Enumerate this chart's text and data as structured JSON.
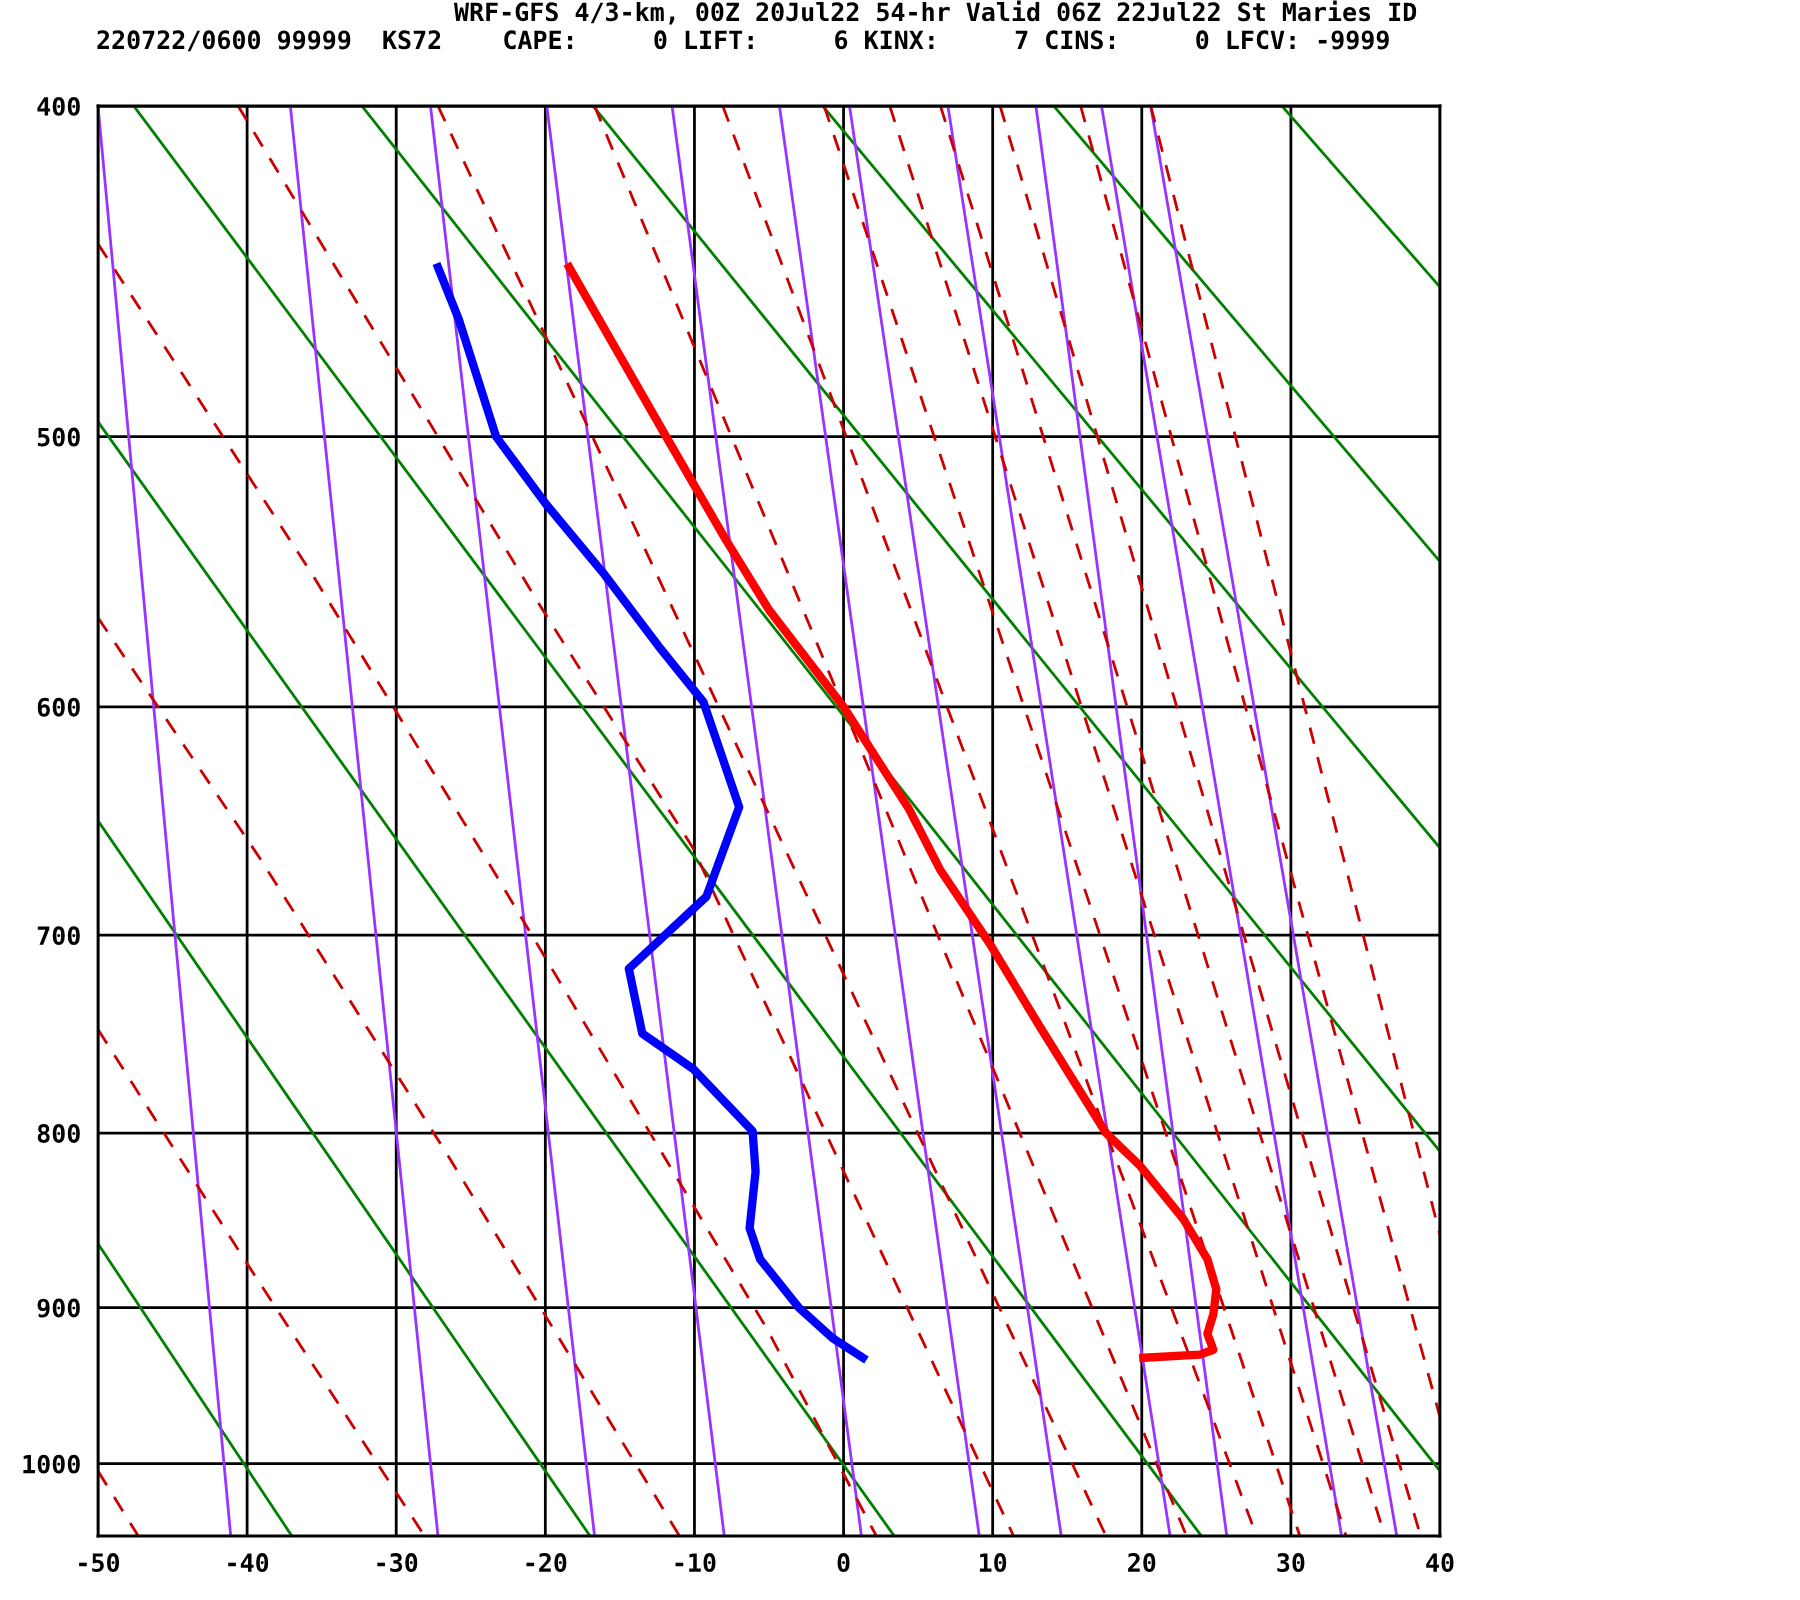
{
  "chart_data": {
    "type": "line",
    "title": "WRF-GFS 4/3-km, 00Z 20Jul22 54-hr Valid 06Z 22Jul22 St Maries ID",
    "subtitle": "220722/0600 99999  KS72    CAPE:     0 LIFT:     6 KINX:     7 CINS:     0 LFCV: -9999",
    "xlim": [
      -50,
      40
    ],
    "xticks": [
      -50,
      -40,
      -30,
      -20,
      -10,
      0,
      10,
      20,
      30,
      40
    ],
    "ylim": [
      1050,
      400
    ],
    "yticks": [
      400,
      500,
      600,
      700,
      800,
      900,
      1000
    ],
    "grid": true,
    "log": "y",
    "series": [
      {
        "type": "line",
        "color": "#008000",
        "line_style": "solid",
        "x": [
          -50,
          -37.0
        ],
        "values": [
          862,
          1050
        ]
      },
      {
        "type": "line",
        "color": "#008000",
        "line_style": "solid",
        "x": [
          -50,
          -17.0
        ],
        "values": [
          648,
          1050
        ]
      },
      {
        "type": "line",
        "color": "#008000",
        "line_style": "solid",
        "x": [
          -50,
          3.4
        ],
        "values": [
          495,
          1050
        ]
      },
      {
        "type": "line",
        "color": "#008000",
        "line_style": "solid",
        "x": [
          -47.6,
          24.0
        ],
        "values": [
          400,
          1050
        ]
      },
      {
        "type": "line",
        "color": "#008000",
        "line_style": "solid",
        "x": [
          -32.3,
          40
        ],
        "values": [
          400,
          1005
        ]
      },
      {
        "type": "line",
        "color": "#008000",
        "line_style": "solid",
        "x": [
          -16.8,
          40
        ],
        "values": [
          400,
          810
        ]
      },
      {
        "type": "line",
        "color": "#008000",
        "line_style": "solid",
        "x": [
          -1.4,
          40
        ],
        "values": [
          400,
          660
        ]
      },
      {
        "type": "line",
        "color": "#008000",
        "line_style": "solid",
        "x": [
          14.1,
          40
        ],
        "values": [
          400,
          544
        ]
      },
      {
        "type": "line",
        "color": "#008000",
        "line_style": "solid",
        "x": [
          29.4,
          40
        ],
        "values": [
          400,
          452
        ]
      },
      {
        "type": "line",
        "color": "#9933ff",
        "line_style": "solid",
        "x": [
          -50,
          -41.1
        ],
        "values": [
          400,
          1050
        ]
      },
      {
        "type": "line",
        "color": "#9933ff",
        "line_style": "solid",
        "x": [
          -37.1,
          -27.2
        ],
        "values": [
          400,
          1050
        ]
      },
      {
        "type": "line",
        "color": "#9933ff",
        "line_style": "solid",
        "x": [
          -27.7,
          -16.7
        ],
        "values": [
          400,
          1050
        ]
      },
      {
        "type": "line",
        "color": "#9933ff",
        "line_style": "solid",
        "x": [
          -19.9,
          -8.0
        ],
        "values": [
          400,
          1050
        ]
      },
      {
        "type": "line",
        "color": "#9933ff",
        "line_style": "solid",
        "x": [
          -11.5,
          1.2
        ],
        "values": [
          400,
          1050
        ]
      },
      {
        "type": "line",
        "color": "#9933ff",
        "line_style": "solid",
        "x": [
          -4.3,
          9.1
        ],
        "values": [
          400,
          1050
        ]
      },
      {
        "type": "line",
        "color": "#9933ff",
        "line_style": "solid",
        "x": [
          0.4,
          14.6
        ],
        "values": [
          400,
          1050
        ]
      },
      {
        "type": "line",
        "color": "#9933ff",
        "line_style": "solid",
        "x": [
          7.0,
          21.9
        ],
        "values": [
          400,
          1050
        ]
      },
      {
        "type": "line",
        "color": "#9933ff",
        "line_style": "solid",
        "x": [
          12.9,
          25.7
        ],
        "values": [
          400,
          1050
        ]
      },
      {
        "type": "line",
        "color": "#9933ff",
        "line_style": "solid",
        "x": [
          17.3,
          33.4
        ],
        "values": [
          400,
          1050
        ]
      },
      {
        "type": "line",
        "color": "#9933ff",
        "line_style": "solid",
        "x": [
          20.6,
          37.1
        ],
        "values": [
          400,
          1050
        ]
      },
      {
        "type": "line",
        "color": "#cc0000",
        "line_style": "dashed",
        "x": [
          -50,
          -47.3
        ],
        "values": [
          1005,
          1050
        ]
      },
      {
        "type": "line",
        "color": "#cc0000",
        "line_style": "dashed",
        "x": [
          -50,
          -40.2,
          -28.1
        ],
        "values": [
          746,
          871,
          1050
        ]
      },
      {
        "type": "line",
        "color": "#cc0000",
        "line_style": "dashed",
        "x": [
          -50,
          -39.2,
          -26.7,
          -11.0
        ],
        "values": [
          565,
          664,
          810,
          1050
        ]
      },
      {
        "type": "line",
        "color": "#cc0000",
        "line_style": "dashed",
        "x": [
          -50,
          -35.6,
          -23.5,
          -5.2,
          2.2
        ],
        "values": [
          439,
          549,
          670,
          912,
          1050
        ]
      },
      {
        "type": "line",
        "color": "#cc0000",
        "line_style": "dashed",
        "x": [
          -40.6,
          -20.4,
          -10.1,
          11.4
        ],
        "values": [
          400,
          560,
          660,
          1050
        ]
      },
      {
        "type": "line",
        "color": "#cc0000",
        "line_style": "dashed",
        "x": [
          -27.2,
          17.6
        ],
        "values": [
          400,
          1050
        ]
      },
      {
        "type": "line",
        "color": "#cc0000",
        "line_style": "dashed",
        "x": [
          -16.7,
          23.0
        ],
        "values": [
          400,
          1050
        ]
      },
      {
        "type": "line",
        "color": "#cc0000",
        "line_style": "dashed",
        "x": [
          -8.1,
          27.7
        ],
        "values": [
          400,
          1050
        ]
      },
      {
        "type": "line",
        "color": "#cc0000",
        "line_style": "dashed",
        "x": [
          -1.3,
          30.6
        ],
        "values": [
          400,
          1050
        ]
      },
      {
        "type": "line",
        "color": "#cc0000",
        "line_style": "dashed",
        "x": [
          3.1,
          33.7
        ],
        "values": [
          400,
          1050
        ]
      },
      {
        "type": "line",
        "color": "#cc0000",
        "line_style": "dashed",
        "x": [
          6.5,
          36.3
        ],
        "values": [
          400,
          1050
        ]
      },
      {
        "type": "line",
        "color": "#cc0000",
        "line_style": "dashed",
        "x": [
          10.5,
          38.7
        ],
        "values": [
          400,
          1050
        ]
      },
      {
        "type": "line",
        "color": "#cc0000",
        "line_style": "dashed",
        "x": [
          15.9,
          40
        ],
        "values": [
          400,
          969
        ]
      },
      {
        "type": "line",
        "color": "#cc0000",
        "line_style": "dashed",
        "x": [
          20.6,
          40
        ],
        "values": [
          400,
          857
        ]
      },
      {
        "type": "line",
        "color": "#ff0000",
        "line_style": "solid",
        "x": [
          -18.4,
          -11.9,
          -7.9,
          -5.0,
          0,
          4.4,
          6.5,
          9.8,
          13.2,
          17.6,
          19.9,
          22.8,
          24.4,
          25.0,
          24.8,
          24.4,
          24.8,
          23.9,
          20.1
        ],
        "values": [
          446,
          500,
          536,
          562,
          600,
          643,
          670,
          704,
          745,
          800,
          818,
          848,
          871,
          889,
          904,
          916,
          926,
          929,
          931
        ]
      },
      {
        "type": "line",
        "color": "#0000ff",
        "line_style": "solid",
        "x": [
          -27.2,
          -25.8,
          -23.3,
          -20.0,
          -16.0,
          -12.4,
          -9.4,
          -7.0,
          -9.2,
          -14.4,
          -13.5,
          -10.1,
          -6.1,
          -5.9,
          -6.3,
          -5.6,
          -3.0,
          -0.7,
          1.3
        ],
        "values": [
          446,
          462,
          500,
          523,
          549,
          576,
          598,
          642,
          682,
          716,
          748,
          766,
          799,
          821,
          853,
          871,
          900,
          919,
          931
        ]
      }
    ]
  }
}
